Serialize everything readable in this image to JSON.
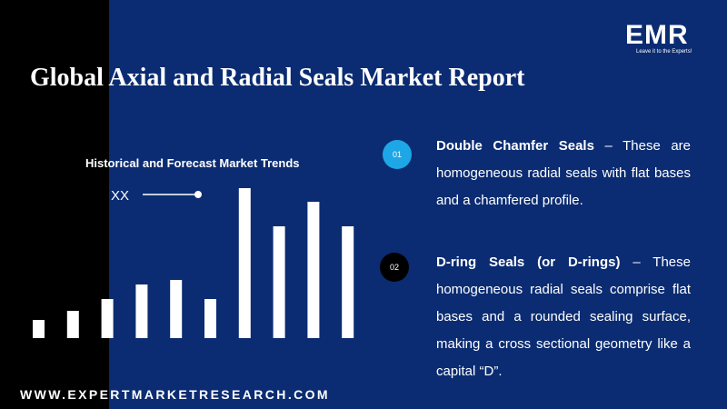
{
  "header": {
    "title": "Global Axial and Radial Seals Market Report",
    "logo": "EMR",
    "tagline": "Leave it to the Experts!"
  },
  "chart": {
    "type": "bar",
    "title": "Historical and Forecast Market Trends",
    "label": "XX",
    "color": "#ffffff",
    "values": [
      20,
      30,
      43,
      59,
      64,
      43,
      165,
      123,
      150,
      123
    ],
    "ylim": [
      0,
      170
    ]
  },
  "points": [
    {
      "number": "01",
      "heading": "Double Chamfer Seals",
      "text": "– These are homogeneous radial seals with flat bases and a chamfered profile."
    },
    {
      "number": "02",
      "heading": "D-ring Seals (or D-rings)",
      "text": "– These homogeneous radial seals comprise flat bases and a rounded sealing surface, making a cross sectional geometry like a capital “D”."
    }
  ],
  "footer": {
    "website": "WWW.EXPERTMARKETRESEARCH.COM"
  }
}
